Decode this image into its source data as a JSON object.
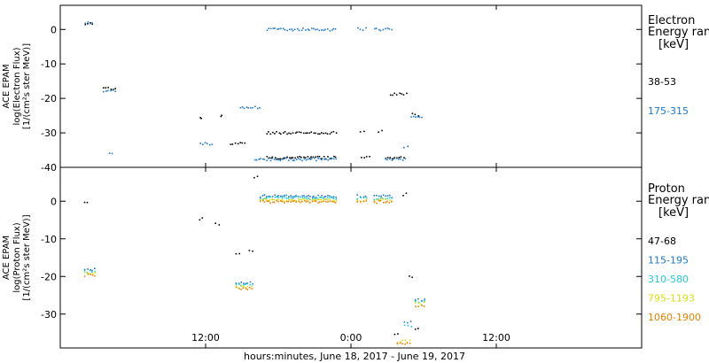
{
  "chart_data": [
    {
      "type": "scatter",
      "panel": "electron",
      "ylabel_lines": [
        "ACE EPAM",
        "log(Electron Flux)",
        "[1/(cm²s ster MeV)]"
      ],
      "ylim": [
        -40,
        7
      ],
      "yticks": [
        0,
        -10,
        -20,
        -30,
        -40
      ],
      "legend_title_lines": [
        "Electron",
        "Energy ran",
        "[keV]"
      ],
      "series": [
        {
          "name": "38-53",
          "color": "#000000",
          "segments": [
            {
              "x0": 2.0,
              "x1": 2.6,
              "y": 2.0
            },
            {
              "x0": 3.5,
              "x1": 4.5,
              "y": -17.0
            },
            {
              "x0": 11.5,
              "x1": 11.6,
              "y": -25.5
            },
            {
              "x0": 13.2,
              "x1": 13.3,
              "y": -25.0
            },
            {
              "x0": 14.0,
              "x1": 15.2,
              "y": -33.0
            },
            {
              "x0": 17.0,
              "x1": 22.7,
              "y": -29.8
            },
            {
              "x0": 17.0,
              "x1": 22.7,
              "y": -37.0
            },
            {
              "x0": 24.7,
              "x1": 25.0,
              "y": -29.7
            },
            {
              "x0": 24.8,
              "x1": 25.5,
              "y": -37.0
            },
            {
              "x0": 26.2,
              "x1": 26.5,
              "y": -29.5
            },
            {
              "x0": 26.8,
              "x1": 28.3,
              "y": -37.0
            },
            {
              "x0": 27.2,
              "x1": 28.5,
              "y": -18.5
            },
            {
              "x0": 29.0,
              "x1": 29.5,
              "y": -24.5
            }
          ]
        },
        {
          "name": "175-315",
          "color": "#1e78c8",
          "segments": [
            {
              "x0": 2.0,
              "x1": 2.6,
              "y": 2.2
            },
            {
              "x0": 3.5,
              "x1": 4.5,
              "y": -17.5
            },
            {
              "x0": 4.0,
              "x1": 4.2,
              "y": -36.0
            },
            {
              "x0": 11.5,
              "x1": 12.5,
              "y": -33.0
            },
            {
              "x0": 14.8,
              "x1": 16.4,
              "y": -22.5
            },
            {
              "x0": 16.0,
              "x1": 22.7,
              "y": -37.5
            },
            {
              "x0": 17.0,
              "x1": 22.7,
              "y": 0.2
            },
            {
              "x0": 24.5,
              "x1": 25.2,
              "y": 0.3
            },
            {
              "x0": 25.9,
              "x1": 27.3,
              "y": 0.2
            },
            {
              "x0": 26.8,
              "x1": 28.4,
              "y": -37.5
            },
            {
              "x0": 28.3,
              "x1": 28.6,
              "y": -34.0
            },
            {
              "x0": 28.9,
              "x1": 29.8,
              "y": -25.0
            }
          ]
        }
      ]
    },
    {
      "type": "scatter",
      "panel": "proton",
      "ylabel_lines": [
        "ACE EPAM",
        "log(Proton Flux)",
        "[1/(cm²s ster MeV)]"
      ],
      "ylim": [
        -39,
        9
      ],
      "yticks": [
        0,
        -10,
        -20,
        -30
      ],
      "legend_title_lines": [
        "Proton",
        "Energy ran",
        "[keV]"
      ],
      "series": [
        {
          "name": "47-68",
          "color": "#000000",
          "segments": [
            {
              "x0": 2.0,
              "x1": 2.2,
              "y": 0.0
            },
            {
              "x0": 11.5,
              "x1": 11.7,
              "y": -4.5
            },
            {
              "x0": 12.8,
              "x1": 13.1,
              "y": -6.0
            },
            {
              "x0": 14.5,
              "x1": 14.7,
              "y": -14.0
            },
            {
              "x0": 15.6,
              "x1": 15.8,
              "y": -13.0
            },
            {
              "x0": 16.0,
              "x1": 16.2,
              "y": 6.5
            },
            {
              "x0": 27.6,
              "x1": 27.8,
              "y": -35.0
            },
            {
              "x0": 28.3,
              "x1": 28.5,
              "y": 2.0
            },
            {
              "x0": 28.8,
              "x1": 29.0,
              "y": -20.0
            },
            {
              "x0": 29.3,
              "x1": 29.5,
              "y": -34.0
            }
          ]
        },
        {
          "name": "115-195",
          "color": "#1e78c8",
          "segments": [
            {
              "x0": 2.0,
              "x1": 2.8,
              "y": -18.0
            },
            {
              "x0": 14.5,
              "x1": 15.8,
              "y": -21.5
            },
            {
              "x0": 16.5,
              "x1": 22.7,
              "y": 1.5
            },
            {
              "x0": 24.5,
              "x1": 25.2,
              "y": 1.5
            },
            {
              "x0": 25.9,
              "x1": 27.3,
              "y": 1.5
            },
            {
              "x0": 28.4,
              "x1": 28.9,
              "y": -32.0
            },
            {
              "x0": 29.3,
              "x1": 30.0,
              "y": -26.0
            }
          ]
        },
        {
          "name": "310-580",
          "color": "#22c8dc",
          "segments": [
            {
              "x0": 2.0,
              "x1": 2.8,
              "y": -18.5
            },
            {
              "x0": 14.5,
              "x1": 15.8,
              "y": -22.0
            },
            {
              "x0": 16.5,
              "x1": 22.7,
              "y": 1.0
            },
            {
              "x0": 24.5,
              "x1": 25.2,
              "y": 1.0
            },
            {
              "x0": 25.9,
              "x1": 27.3,
              "y": 1.0
            },
            {
              "x0": 28.4,
              "x1": 28.9,
              "y": -33.0
            },
            {
              "x0": 29.3,
              "x1": 30.0,
              "y": -26.5
            }
          ]
        },
        {
          "name": "795-1193",
          "color": "#dcdc14",
          "segments": [
            {
              "x0": 2.0,
              "x1": 2.8,
              "y": -19.0
            },
            {
              "x0": 14.5,
              "x1": 15.8,
              "y": -22.5
            },
            {
              "x0": 16.5,
              "x1": 22.7,
              "y": 0.5
            },
            {
              "x0": 24.5,
              "x1": 25.2,
              "y": 0.5
            },
            {
              "x0": 25.9,
              "x1": 27.3,
              "y": 0.5
            },
            {
              "x0": 27.8,
              "x1": 28.8,
              "y": -37.0
            },
            {
              "x0": 29.3,
              "x1": 30.0,
              "y": -27.0
            }
          ]
        },
        {
          "name": "1060-1900",
          "color": "#e68200",
          "segments": [
            {
              "x0": 2.0,
              "x1": 2.8,
              "y": -19.5
            },
            {
              "x0": 14.5,
              "x1": 15.8,
              "y": -23.0
            },
            {
              "x0": 16.5,
              "x1": 22.7,
              "y": 0.0
            },
            {
              "x0": 24.5,
              "x1": 25.2,
              "y": 0.0
            },
            {
              "x0": 25.9,
              "x1": 27.3,
              "y": 0.0
            },
            {
              "x0": 27.8,
              "x1": 28.8,
              "y": -37.5
            },
            {
              "x0": 29.3,
              "x1": 30.0,
              "y": -27.5
            }
          ]
        }
      ]
    }
  ],
  "x_axis": {
    "range_hours": [
      0,
      48
    ],
    "ticks": [
      {
        "value": 12,
        "label": "12:00"
      },
      {
        "value": 24,
        "label": "0:00"
      },
      {
        "value": 36,
        "label": "12:00"
      }
    ],
    "xlabel": "hours:minutes, June 18, 2017 - June 19, 2017"
  }
}
